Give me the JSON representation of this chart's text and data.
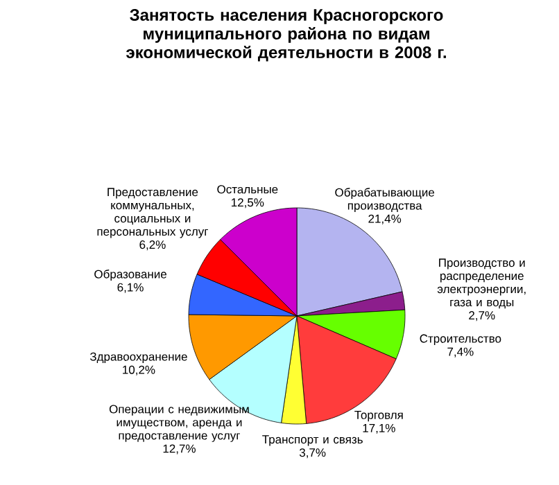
{
  "chart_data": {
    "type": "pie",
    "title": "Занятость населения Красногорского муниципального района по видам экономической деятельности в 2008 г.",
    "categories": [
      "Обрабатывающие производства",
      "Производство и распределение электроэнергии, газа и воды",
      "Строительство",
      "Торговля",
      "Транспорт и связь",
      "Операции с недвижимым имуществом, аренда и предоставление услуг",
      "Здравоохранение",
      "Образование",
      "Предоставление коммунальных, социальных и персональных услуг",
      "Остальные"
    ],
    "values": [
      21.4,
      2.7,
      7.4,
      17.1,
      3.7,
      12.7,
      10.2,
      6.1,
      6.2,
      12.5
    ],
    "value_labels": [
      "21,4%",
      "2,7%",
      "7,4%",
      "17,1%",
      "3,7%",
      "12,7%",
      "10,2%",
      "6,1%",
      "6,2%",
      "12,5%"
    ],
    "colors": [
      "#b4b4f0",
      "#8c1e8c",
      "#66ff00",
      "#ff3c3c",
      "#ffff33",
      "#b4ffff",
      "#ff9900",
      "#3366ff",
      "#ff0000",
      "#cc00cc"
    ]
  }
}
